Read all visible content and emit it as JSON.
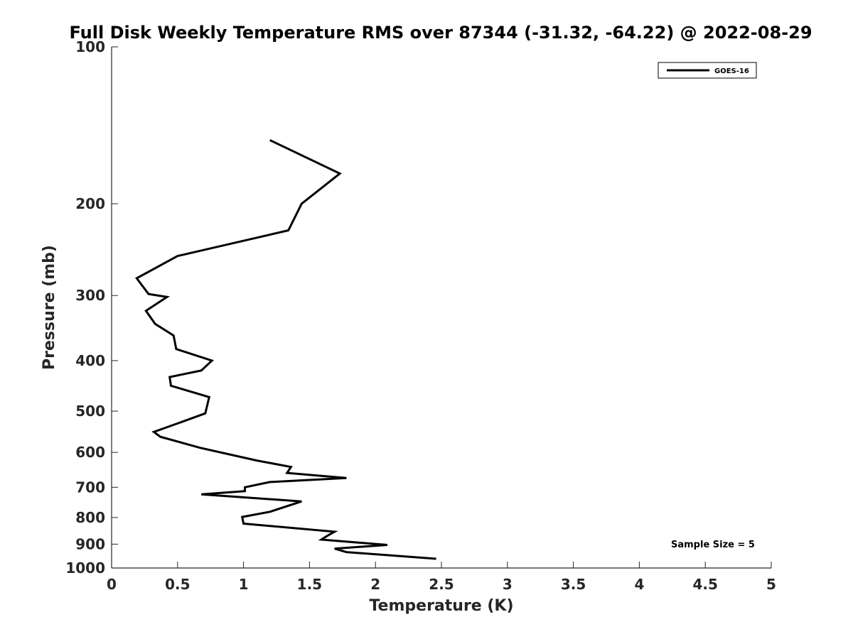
{
  "chart_data": {
    "type": "line",
    "title": "Full Disk Weekly Temperature RMS over 87344 (-31.32, -64.22) @ 2022-08-29",
    "xlabel": "Temperature (K)",
    "ylabel": "Pressure (mb)",
    "xlim": [
      0,
      5
    ],
    "ylim": [
      100,
      1000
    ],
    "y_scale": "log",
    "y_reversed": true,
    "x_ticks": [
      "0",
      "0.5",
      "1",
      "1.5",
      "2",
      "2.5",
      "3",
      "3.5",
      "4",
      "4.5",
      "5"
    ],
    "y_ticks": [
      "100",
      "200",
      "300",
      "400",
      "500",
      "600",
      "700",
      "800",
      "900",
      "1000"
    ],
    "legend_position": "top-right",
    "annotation": "Sample Size = 5",
    "line_color": "#000000",
    "series": [
      {
        "name": "GOES-16",
        "points": [
          [
            1.2,
            151
          ],
          [
            1.73,
            175
          ],
          [
            1.44,
            200
          ],
          [
            1.34,
            225
          ],
          [
            0.5,
            252
          ],
          [
            0.19,
            278
          ],
          [
            0.28,
            298
          ],
          [
            0.42,
            302
          ],
          [
            0.26,
            321
          ],
          [
            0.33,
            340
          ],
          [
            0.47,
            358
          ],
          [
            0.49,
            380
          ],
          [
            0.76,
            400
          ],
          [
            0.68,
            418
          ],
          [
            0.44,
            430
          ],
          [
            0.45,
            447
          ],
          [
            0.74,
            470
          ],
          [
            0.71,
            505
          ],
          [
            0.5,
            528
          ],
          [
            0.32,
            548
          ],
          [
            0.37,
            560
          ],
          [
            0.67,
            588
          ],
          [
            1.1,
            622
          ],
          [
            1.36,
            640
          ],
          [
            1.33,
            657
          ],
          [
            1.78,
            672
          ],
          [
            1.2,
            684
          ],
          [
            1.01,
            700
          ],
          [
            1.01,
            712
          ],
          [
            0.68,
            722
          ],
          [
            1.44,
            745
          ],
          [
            1.2,
            780
          ],
          [
            0.99,
            798
          ],
          [
            1.0,
            822
          ],
          [
            1.69,
            852
          ],
          [
            1.64,
            866
          ],
          [
            1.59,
            882
          ],
          [
            2.09,
            903
          ],
          [
            1.69,
            918
          ],
          [
            1.78,
            932
          ],
          [
            2.46,
            960
          ]
        ]
      }
    ]
  }
}
